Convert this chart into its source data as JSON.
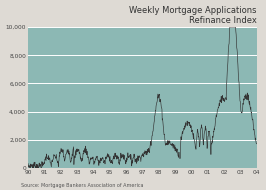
{
  "title_line1": "Weekly Mortgage Applications",
  "title_line2": "Refinance Index",
  "source": "Source: Mortgage Bankers Association of America",
  "xlim": [
    0,
    1
  ],
  "ylim": [
    0,
    10000
  ],
  "yticks": [
    0,
    2000,
    4000,
    6000,
    8000,
    10000
  ],
  "ytick_labels": [
    "0",
    "2,000",
    "4,000",
    "6,000",
    "8,000",
    "10,000"
  ],
  "xtick_labels": [
    "90",
    "91",
    "92",
    "93",
    "94",
    "95",
    "96",
    "97",
    "98",
    "99",
    "00",
    "01",
    "02",
    "03",
    "04"
  ],
  "plot_bg_color": "#8cb8b4",
  "fig_bg_color": "#dedad4",
  "line_color": "#333333",
  "grid_color": "#ffffff",
  "title_color": "#333333",
  "title_fontsize": 6.0,
  "tick_fontsize": 4.2,
  "source_fontsize": 3.5
}
